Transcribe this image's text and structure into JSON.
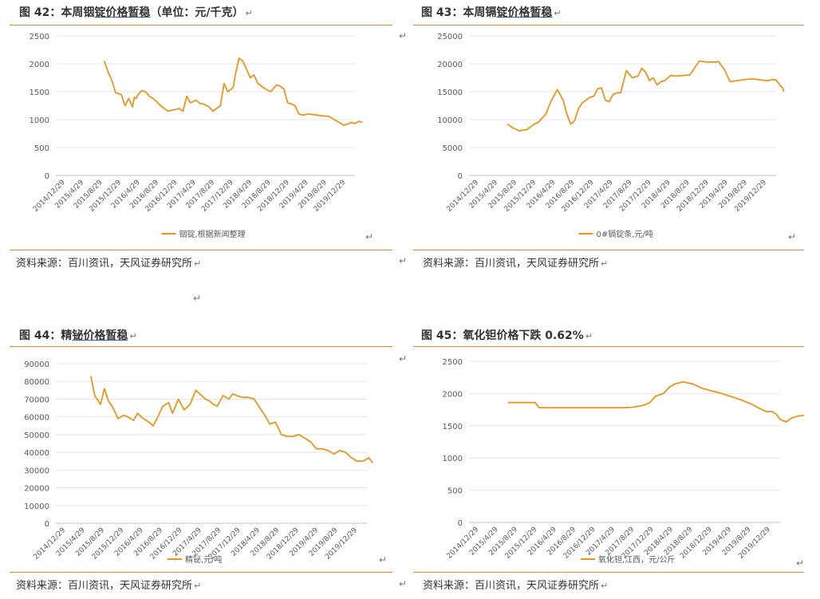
{
  "colors": {
    "accent": "#E38A2C",
    "line": "#E8961E",
    "grid": "#e4e4e4",
    "axis_text": "#595959"
  },
  "return_mark": "↵",
  "return_mark_standalone": "↵",
  "panels": [
    {
      "title_prefix": "图 42：本周铟",
      "title_underlined": "锭价格暂稳",
      "title_suffix": "（单位：元/千克）",
      "source": "资料来源：百川资讯，天风证券研究所"
    },
    {
      "title_prefix": "图 43：本周镉",
      "title_underlined": "锭价格暂稳",
      "title_suffix": "",
      "source": "资料来源：百川资讯，天风证券研究所"
    },
    {
      "title_prefix": "图 44：精",
      "title_underlined": "铋价格暂稳",
      "title_suffix": "",
      "source": "资料来源：百川资讯，天风证券研究所"
    },
    {
      "title_prefix": "图 45：氧化钽价格下跌 0.62%",
      "title_underlined": "",
      "title_suffix": "",
      "source": "资料来源：百川资讯，天风证券研究所"
    }
  ],
  "chart_data": [
    {
      "type": "line",
      "yticks": [
        0,
        500,
        1000,
        1500,
        2000,
        2500
      ],
      "ylim": [
        0,
        2500
      ],
      "xticks": [
        "2014/12/29",
        "2015/4/29",
        "2015/8/29",
        "2015/12/29",
        "2016/4/29",
        "2016/8/29",
        "2016/12/29",
        "2017/4/29",
        "2017/8/29",
        "2017/12/29",
        "2018/4/29",
        "2018/8/29",
        "2018/12/29",
        "2019/4/29",
        "2019/8/29",
        "2019/12/29"
      ],
      "series": [
        {
          "name": "铟锭,根据新闻整理",
          "x": [
            2.6,
            2.8,
            3.0,
            3.2,
            3.5,
            3.7,
            3.9,
            4.1,
            4.2,
            4.3,
            4.4,
            4.6,
            4.8,
            5.0,
            5.2,
            5.4,
            5.6,
            5.8,
            6.0,
            6.2,
            6.4,
            6.6,
            6.8,
            7.0,
            7.2,
            7.5,
            7.7,
            7.9,
            8.0,
            8.2,
            8.4,
            8.6,
            8.8,
            9.0,
            9.2,
            9.4,
            9.5,
            9.6,
            9.8,
            10.0,
            10.2,
            10.4,
            10.6,
            10.8,
            11.0,
            11.2,
            11.5,
            11.8,
            12.0,
            12.2,
            12.4,
            12.6,
            12.8,
            13.0,
            13.2,
            13.5,
            13.8,
            14.2,
            14.6,
            15.0,
            15.4,
            15.6,
            15.8,
            16.0,
            16.2,
            16.4
          ],
          "values": [
            2050,
            1850,
            1700,
            1480,
            1450,
            1250,
            1380,
            1230,
            1400,
            1380,
            1450,
            1520,
            1500,
            1420,
            1380,
            1320,
            1250,
            1200,
            1150,
            1170,
            1180,
            1200,
            1150,
            1420,
            1300,
            1350,
            1290,
            1280,
            1260,
            1230,
            1150,
            1200,
            1250,
            1650,
            1500,
            1550,
            1600,
            1800,
            2100,
            2050,
            1900,
            1750,
            1800,
            1650,
            1600,
            1550,
            1500,
            1620,
            1600,
            1550,
            1300,
            1280,
            1250,
            1100,
            1080,
            1100,
            1090,
            1070,
            1060,
            980,
            900,
            920,
            950,
            930,
            970,
            950
          ]
        }
      ],
      "legend_position": "bottom"
    },
    {
      "type": "line",
      "yticks": [
        0,
        5000,
        10000,
        15000,
        20000,
        25000
      ],
      "ylim": [
        0,
        25000
      ],
      "xticks": [
        "2014/12/29",
        "2015/4/29",
        "2015/8/29",
        "2015/12/29",
        "2016/4/29",
        "2016/8/29",
        "2016/12/29",
        "2017/4/29",
        "2017/8/29",
        "2017/12/29",
        "2018/4/29",
        "2018/8/29",
        "2018/12/29",
        "2019/4/29",
        "2019/8/29",
        "2019/12/29"
      ],
      "series": [
        {
          "name": "0#镉锭条,元/吨",
          "x": [
            2.0,
            2.3,
            2.6,
            3.0,
            3.4,
            3.6,
            4.0,
            4.3,
            4.6,
            4.9,
            5.1,
            5.3,
            5.5,
            5.7,
            5.9,
            6.1,
            6.3,
            6.5,
            6.7,
            6.9,
            7.1,
            7.3,
            7.5,
            7.7,
            7.9,
            8.2,
            8.5,
            8.8,
            9.0,
            9.2,
            9.4,
            9.6,
            9.8,
            10.0,
            10.2,
            10.5,
            10.8,
            11.1,
            11.5,
            12.0,
            12.4,
            12.8,
            13.0,
            13.3,
            13.6,
            14.0,
            14.4,
            14.8,
            15.2,
            15.6,
            15.8,
            16.0,
            16.2,
            16.35,
            16.4
          ],
          "values": [
            9200,
            8500,
            8000,
            8200,
            9200,
            9500,
            11000,
            13500,
            15400,
            13500,
            11000,
            9200,
            9800,
            12000,
            13000,
            13500,
            14000,
            14200,
            15500,
            15700,
            13500,
            13200,
            14500,
            14800,
            14800,
            18800,
            17500,
            17800,
            19200,
            18500,
            17000,
            17500,
            16200,
            16800,
            17000,
            17900,
            17800,
            17900,
            18000,
            20500,
            20300,
            20300,
            20400,
            19000,
            16800,
            17000,
            17200,
            17300,
            17100,
            17000,
            17200,
            17100,
            16200,
            15600,
            15000
          ]
        }
      ],
      "legend_position": "bottom"
    },
    {
      "type": "line",
      "yticks": [
        0,
        10000,
        20000,
        30000,
        40000,
        50000,
        60000,
        70000,
        80000,
        90000
      ],
      "ylim": [
        0,
        90000
      ],
      "xticks": [
        "2014/12/29",
        "2015/4/29",
        "2015/8/29",
        "2015/12/29",
        "2016/4/29",
        "2016/8/29",
        "2016/12/29",
        "2017/4/29",
        "2017/8/29",
        "2017/12/29",
        "2018/4/29",
        "2018/8/29",
        "2018/12/29",
        "2019/4/29",
        "2019/8/29",
        "2019/12/29"
      ],
      "series": [
        {
          "name": "精铋,元/吨",
          "x": [
            1.8,
            2.0,
            2.3,
            2.5,
            2.7,
            2.9,
            3.2,
            3.5,
            3.7,
            4.0,
            4.2,
            4.5,
            4.8,
            5.0,
            5.2,
            5.5,
            5.8,
            6.0,
            6.3,
            6.6,
            6.9,
            7.2,
            7.5,
            7.7,
            7.9,
            8.1,
            8.3,
            8.6,
            8.9,
            9.1,
            9.3,
            9.6,
            9.9,
            10.2,
            10.5,
            10.8,
            11.0,
            11.3,
            11.6,
            11.9,
            12.2,
            12.5,
            12.8,
            13.1,
            13.4,
            13.7,
            14.0,
            14.3,
            14.6,
            14.9,
            15.2,
            15.5,
            15.8,
            16.1,
            16.3
          ],
          "values": [
            83000,
            72000,
            67000,
            76000,
            69000,
            66000,
            59000,
            61000,
            60000,
            58000,
            62000,
            59000,
            57000,
            55000,
            59000,
            66000,
            68000,
            62000,
            70000,
            64000,
            67000,
            75000,
            72000,
            70000,
            69000,
            67000,
            66000,
            72000,
            70000,
            73000,
            72000,
            71000,
            71000,
            70000,
            65000,
            60000,
            56000,
            57000,
            50000,
            49000,
            49000,
            50000,
            48000,
            46000,
            42000,
            42000,
            41000,
            39000,
            41000,
            40000,
            37000,
            35000,
            35000,
            37000,
            34000
          ]
        }
      ],
      "legend_position": "bottom"
    },
    {
      "type": "line",
      "yticks": [
        0,
        500,
        1000,
        1500,
        2000,
        2500
      ],
      "ylim": [
        0,
        2500
      ],
      "xticks": [
        "2014/12/29",
        "2015/4/29",
        "2015/8/29",
        "2015/12/29",
        "2016/4/29",
        "2016/8/29",
        "2016/12/29",
        "2017/4/29",
        "2017/8/29",
        "2017/12/29",
        "2018/4/29",
        "2018/8/29",
        "2018/12/29",
        "2019/4/29",
        "2019/8/29",
        "2019/12/29"
      ],
      "series": [
        {
          "name": "氧化钽,江西，元/公斤",
          "x": [
            2.0,
            2.5,
            3.0,
            3.4,
            3.6,
            4.0,
            5.0,
            6.0,
            7.0,
            8.0,
            8.5,
            9.0,
            9.3,
            9.6,
            10.0,
            10.3,
            10.6,
            11.0,
            11.5,
            12.0,
            12.5,
            13.0,
            13.5,
            14.0,
            14.5,
            15.0,
            15.3,
            15.6,
            15.8,
            16.0,
            16.3,
            16.6,
            16.9,
            17.2,
            17.4
          ],
          "values": [
            1860,
            1860,
            1860,
            1860,
            1780,
            1780,
            1780,
            1780,
            1780,
            1780,
            1790,
            1820,
            1860,
            1960,
            2000,
            2100,
            2150,
            2180,
            2150,
            2080,
            2040,
            2000,
            1950,
            1900,
            1840,
            1760,
            1720,
            1720,
            1680,
            1600,
            1560,
            1620,
            1650,
            1660,
            1680
          ]
        }
      ],
      "legend_position": "bottom"
    }
  ]
}
